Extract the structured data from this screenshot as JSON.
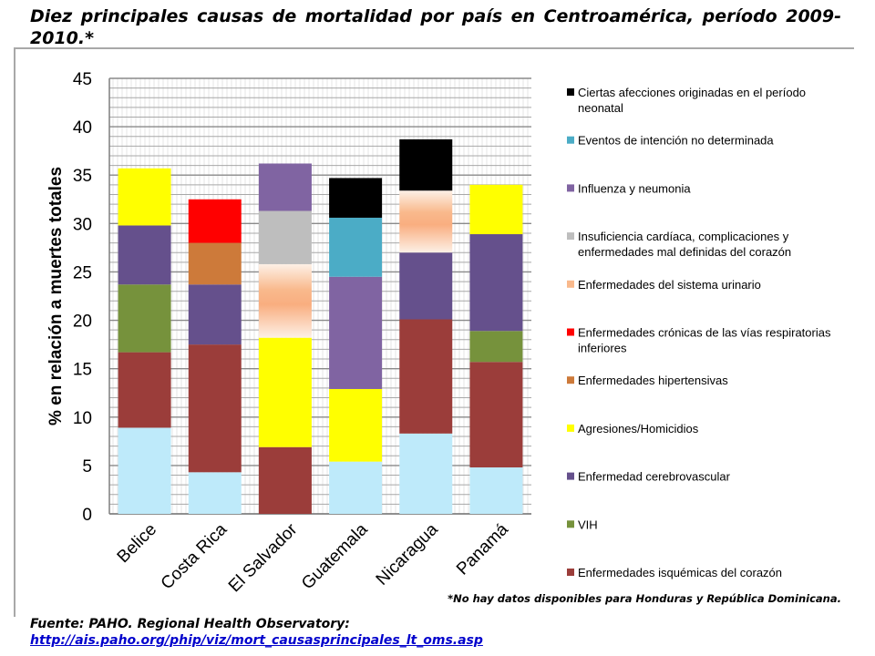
{
  "title": "Diez principales causas de mortalidad  por país en Centroamérica, período 2009-2010.*",
  "source": {
    "label": "Fuente: PAHO. Regional Health Observatory:",
    "url": "http://ais.paho.org/phip/viz/mort_causasprincipales_lt_oms.asp"
  },
  "chart_data": {
    "type": "bar",
    "stacked": true,
    "title": "",
    "xlabel": "",
    "ylabel": "% en relación a muertes totales",
    "ylim": [
      0,
      45
    ],
    "yticks": [
      0,
      5,
      10,
      15,
      20,
      25,
      30,
      35,
      40,
      45
    ],
    "grid": true,
    "legend_position": "right",
    "categories": [
      "Belice",
      "Costa Rica",
      "El Salvador",
      "Guatemala",
      "Nicaragua",
      "Panamá"
    ],
    "series": [
      {
        "name": "Enfermedades isquémicas del corazón",
        "color": "#9B3D3A",
        "values": [
          7.8,
          13.2,
          6.9,
          0,
          11.8,
          10.9
        ]
      },
      {
        "name": "VIH",
        "color": "#76923C",
        "values": [
          7.0,
          0,
          0,
          0,
          0,
          3.2
        ]
      },
      {
        "name": "Enfermedad cerebrovascular",
        "color": "#65508C",
        "values": [
          6.1,
          6.2,
          0,
          0,
          6.9,
          10.0
        ]
      },
      {
        "name": "Agresiones/Homicidios",
        "color": "#FFFF00",
        "values": [
          5.9,
          0,
          11.3,
          7.5,
          0,
          5.1
        ]
      },
      {
        "name": "Enfermedades hipertensivas",
        "color": "#CD7A3A",
        "values": [
          0,
          4.3,
          0,
          0,
          0,
          0
        ]
      },
      {
        "name": "Enfermedades crónicas de las vías respiratorias inferiores",
        "color": "#FF0000",
        "values": [
          0,
          4.5,
          0,
          0,
          0,
          0
        ]
      },
      {
        "name": "Enfermedades del sistema urinario",
        "color": "#F9B98C",
        "values": [
          0,
          0,
          7.6,
          0,
          6.4,
          0
        ]
      },
      {
        "name": "Insuficiencia cardíaca, complicaciones y enfermedades mal definidas del corazón",
        "color": "#BEBEBE",
        "values": [
          0,
          0,
          5.5,
          0,
          0,
          0
        ]
      },
      {
        "name": "Influenza y neumonia",
        "color": "#8064A2",
        "values": [
          0,
          0,
          4.9,
          11.6,
          0,
          0
        ]
      },
      {
        "name": "Eventos de intención no determinada",
        "color": "#4BACC6",
        "values": [
          0,
          0,
          0,
          6.1,
          0,
          0
        ]
      },
      {
        "name": "Ciertas afecciones originadas en el período neonatal",
        "color": "#000000",
        "values": [
          0,
          0,
          0,
          4.1,
          5.3,
          0
        ]
      }
    ],
    "base_color": "#BEEAFA",
    "note": "*No hay datos disponibles para Honduras y República Dominicana."
  }
}
